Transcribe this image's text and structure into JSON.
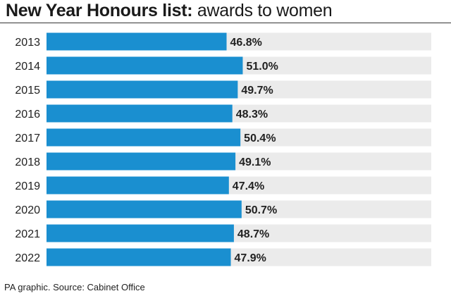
{
  "header": {
    "title_bold": "New Year Honours list:",
    "title_rest": " awards to women"
  },
  "footer": {
    "source": "PA graphic. Source: Cabinet Office"
  },
  "colors": {
    "bar": "#1a8fd0",
    "track": "#ebebeb",
    "text": "#222222"
  },
  "chart_data": {
    "type": "bar",
    "orientation": "horizontal",
    "categories": [
      "2013",
      "2014",
      "2015",
      "2016",
      "2017",
      "2018",
      "2019",
      "2020",
      "2021",
      "2022"
    ],
    "values": [
      46.8,
      51.0,
      49.7,
      48.3,
      50.4,
      49.1,
      47.4,
      50.7,
      48.7,
      47.9
    ],
    "value_labels": [
      "46.8%",
      "51.0%",
      "49.7%",
      "48.3%",
      "50.4%",
      "49.1%",
      "47.4%",
      "50.7%",
      "48.7%",
      "47.9%"
    ],
    "xlim": [
      0,
      100
    ],
    "grid": false,
    "legend": "none"
  }
}
